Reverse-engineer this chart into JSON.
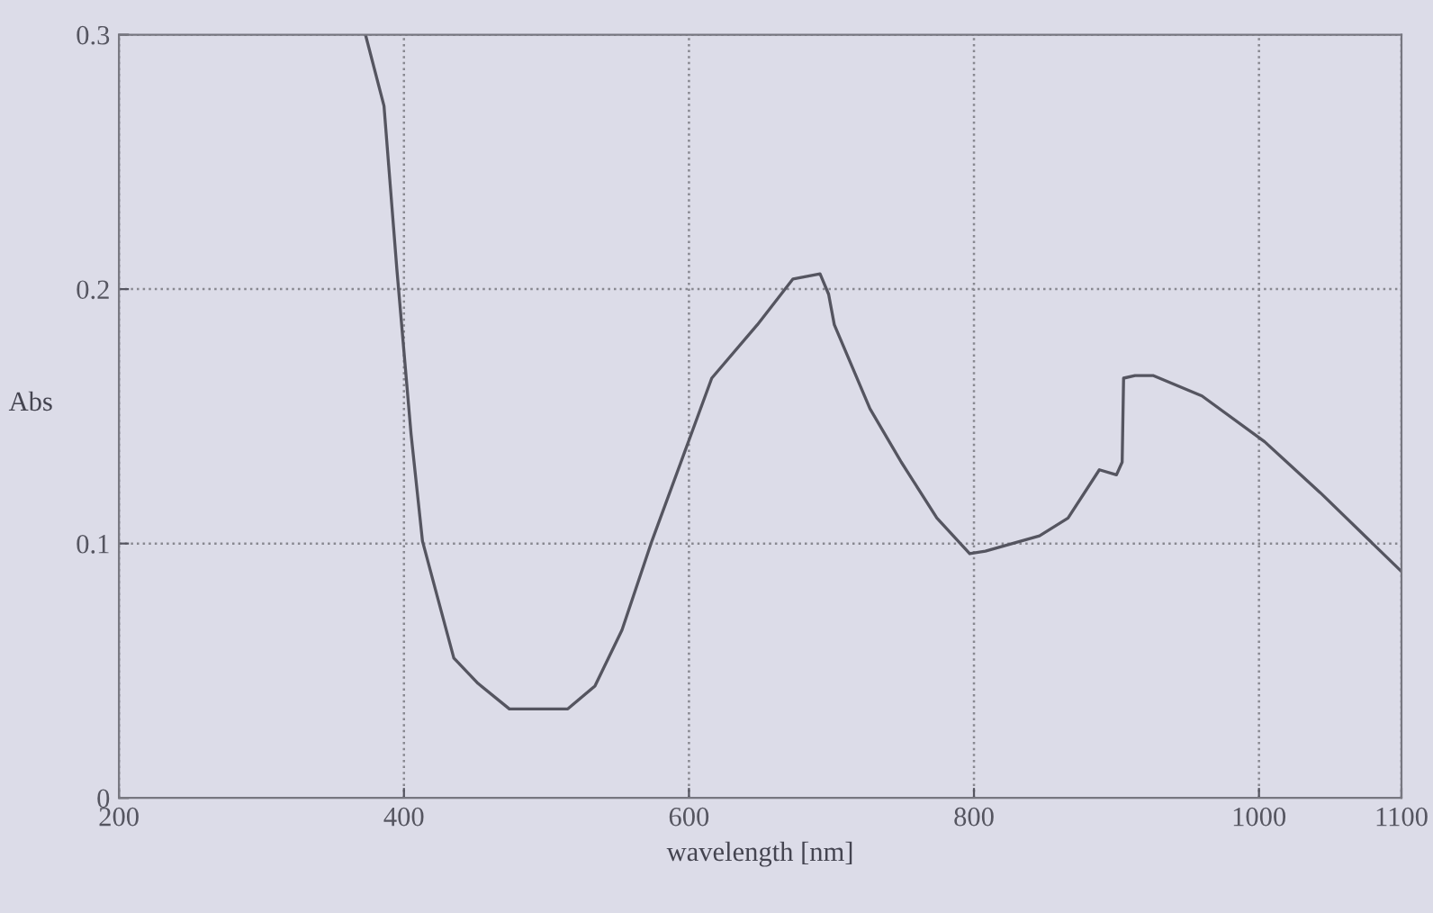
{
  "chart_data": {
    "type": "line",
    "xlabel": "wavelength [nm]",
    "ylabel": "Abs",
    "xlim": [
      200,
      1100
    ],
    "xticks": [
      200,
      400,
      600,
      800,
      1000,
      1100
    ],
    "ylim": [
      0,
      0.3
    ],
    "yticks": [
      0,
      0.1,
      0.2,
      0.3
    ],
    "grid": true,
    "line_style": "solid",
    "series": [
      {
        "color": "#555560",
        "x": [
          373,
          386,
          395,
          405,
          413,
          423,
          435,
          452,
          474,
          515,
          534,
          553,
          574,
          597,
          616,
          648,
          673,
          692,
          698,
          702,
          727,
          749,
          774,
          797,
          808,
          846,
          866,
          888,
          900,
          904,
          905,
          913,
          926,
          960,
          1004,
          1043,
          1100
        ],
        "values": [
          0.3,
          0.272,
          0.208,
          0.143,
          0.101,
          0.08,
          0.055,
          0.045,
          0.035,
          0.035,
          0.044,
          0.066,
          0.101,
          0.136,
          0.165,
          0.186,
          0.204,
          0.206,
          0.198,
          0.186,
          0.153,
          0.132,
          0.11,
          0.096,
          0.097,
          0.103,
          0.11,
          0.129,
          0.127,
          0.132,
          0.165,
          0.166,
          0.166,
          0.158,
          0.14,
          0.12,
          0.089
        ]
      }
    ]
  }
}
